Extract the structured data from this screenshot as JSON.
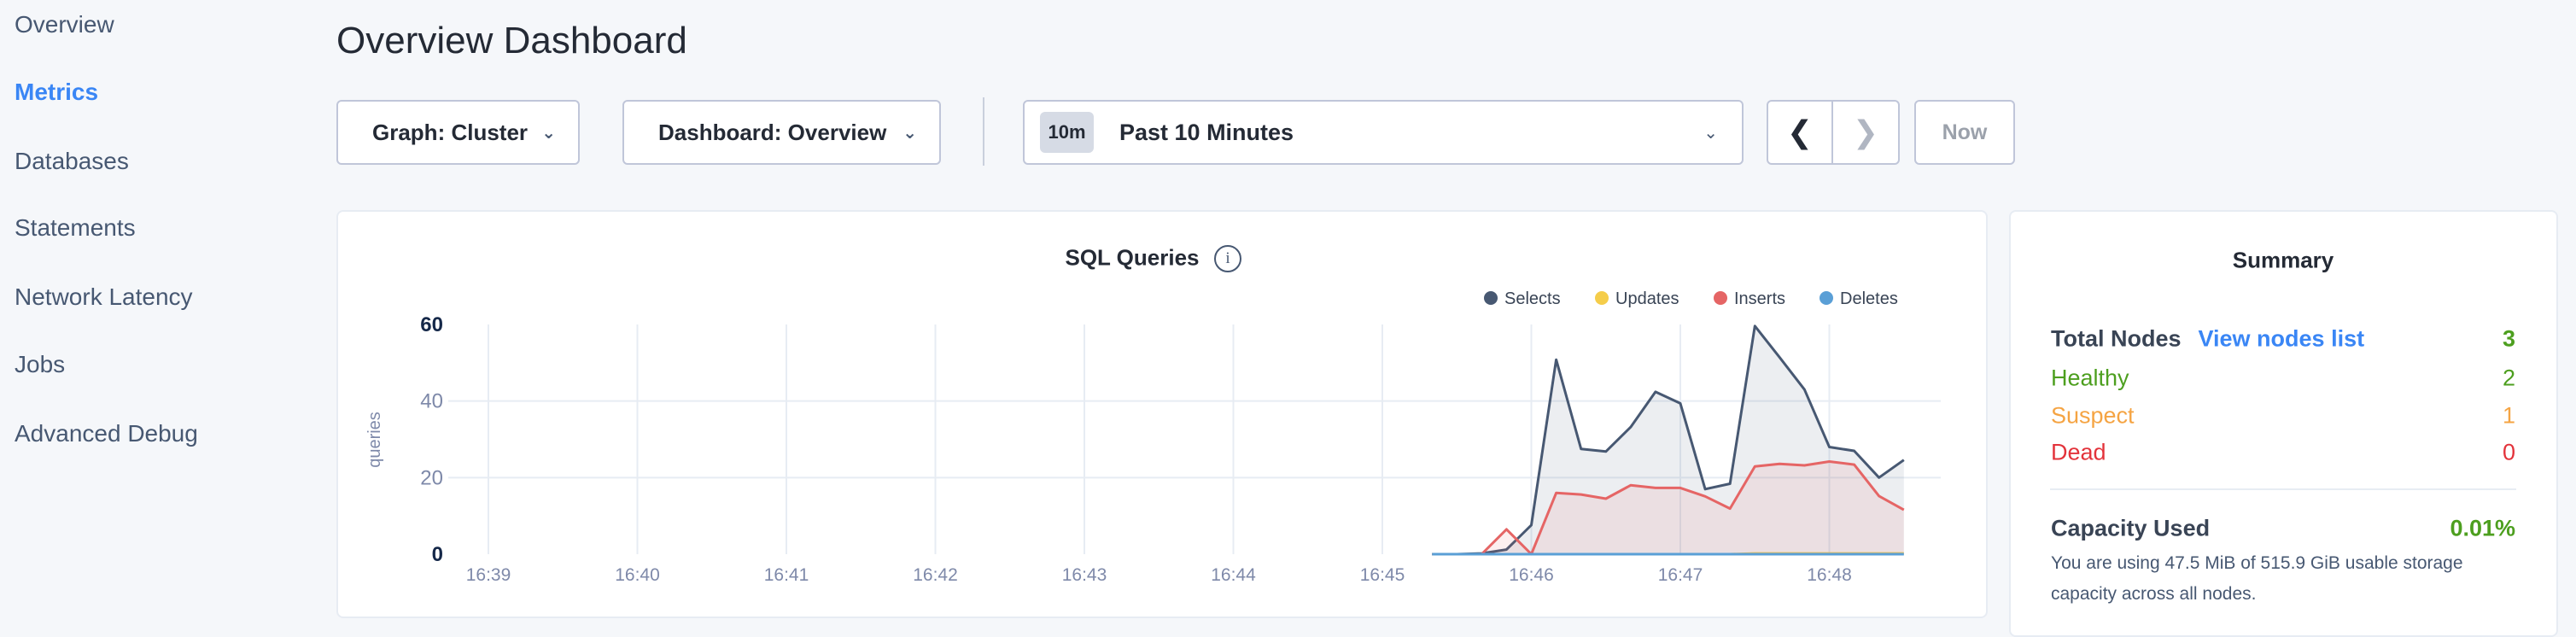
{
  "sidebar": {
    "items": [
      {
        "label": "Overview",
        "active": false
      },
      {
        "label": "Metrics",
        "active": true
      },
      {
        "label": "Databases",
        "active": false
      },
      {
        "label": "Statements",
        "active": false
      },
      {
        "label": "Network Latency",
        "active": false
      },
      {
        "label": "Jobs",
        "active": false
      },
      {
        "label": "Advanced Debug",
        "active": false
      }
    ]
  },
  "header": {
    "title": "Overview Dashboard",
    "graph_select": "Graph: Cluster",
    "dashboard_select": "Dashboard: Overview",
    "time_badge": "10m",
    "time_range": "Past 10 Minutes",
    "now_label": "Now",
    "icons": {
      "dropdown": "chevron-down-icon",
      "prev": "chevron-left-icon",
      "next": "chevron-right-icon"
    }
  },
  "chart_card": {
    "title": "SQL Queries",
    "info_icon": "info-icon"
  },
  "summary": {
    "title": "Summary",
    "total_nodes_label": "Total Nodes",
    "view_nodes_link": "View nodes list",
    "total_nodes": "3",
    "healthy_label": "Healthy",
    "healthy": "2",
    "suspect_label": "Suspect",
    "suspect": "1",
    "dead_label": "Dead",
    "dead": "0",
    "capacity_label": "Capacity Used",
    "capacity_value": "0.01%",
    "capacity_desc_1": "You are using 47.5 MiB of 515.9 GiB usable storage",
    "capacity_desc_2": "capacity across all nodes.",
    "colors": {
      "healthy": "#4d9f1f",
      "suspect": "#f5a443",
      "dead": "#e3333b",
      "link": "#3a86f5"
    }
  },
  "chart_data": {
    "type": "area",
    "title": "SQL Queries",
    "xlabel": "",
    "ylabel": "queries",
    "ylim": [
      0,
      60
    ],
    "yticks": [
      "0",
      "20",
      "40",
      "60"
    ],
    "xticks": [
      "16:39",
      "16:40",
      "16:41",
      "16:42",
      "16:43",
      "16:44",
      "16:45",
      "16:46",
      "16:47",
      "16:48"
    ],
    "grid": true,
    "legend_position": "top-right",
    "x": [
      "16:45:20",
      "16:45:30",
      "16:45:40",
      "16:45:50",
      "16:46:00",
      "16:46:10",
      "16:46:20",
      "16:46:30",
      "16:46:40",
      "16:46:50",
      "16:47:00",
      "16:47:10",
      "16:47:20",
      "16:47:30",
      "16:47:40",
      "16:47:50",
      "16:48:00",
      "16:48:10",
      "16:48:20",
      "16:48:30"
    ],
    "series": [
      {
        "name": "Selects",
        "color": "#475872",
        "values": [
          0,
          0,
          0.2,
          1.2,
          7.6,
          50.8,
          27.5,
          26.8,
          33.2,
          42.4,
          39.4,
          17.0,
          18.4,
          59.6,
          51.4,
          43.0,
          28.0,
          27.0,
          20.0,
          24.6
        ]
      },
      {
        "name": "Updates",
        "color": "#f5cd4a",
        "values": [
          0,
          0,
          0,
          0,
          0,
          0,
          0,
          0,
          0,
          0,
          0,
          0,
          0,
          0.2,
          0.2,
          0.2,
          0.2,
          0.2,
          0.2,
          0.2
        ]
      },
      {
        "name": "Inserts",
        "color": "#e56565",
        "values": [
          0,
          0,
          0,
          6.5,
          0,
          16.0,
          15.6,
          14.5,
          18.0,
          17.3,
          17.3,
          15.1,
          11.9,
          22.9,
          23.6,
          23.2,
          24.2,
          23.4,
          15.2,
          11.6
        ]
      },
      {
        "name": "Deletes",
        "color": "#5a9fd6",
        "values": [
          0,
          0,
          0,
          0,
          0,
          0,
          0,
          0,
          0,
          0,
          0,
          0,
          0,
          0,
          0,
          0,
          0,
          0,
          0,
          0
        ]
      }
    ]
  }
}
